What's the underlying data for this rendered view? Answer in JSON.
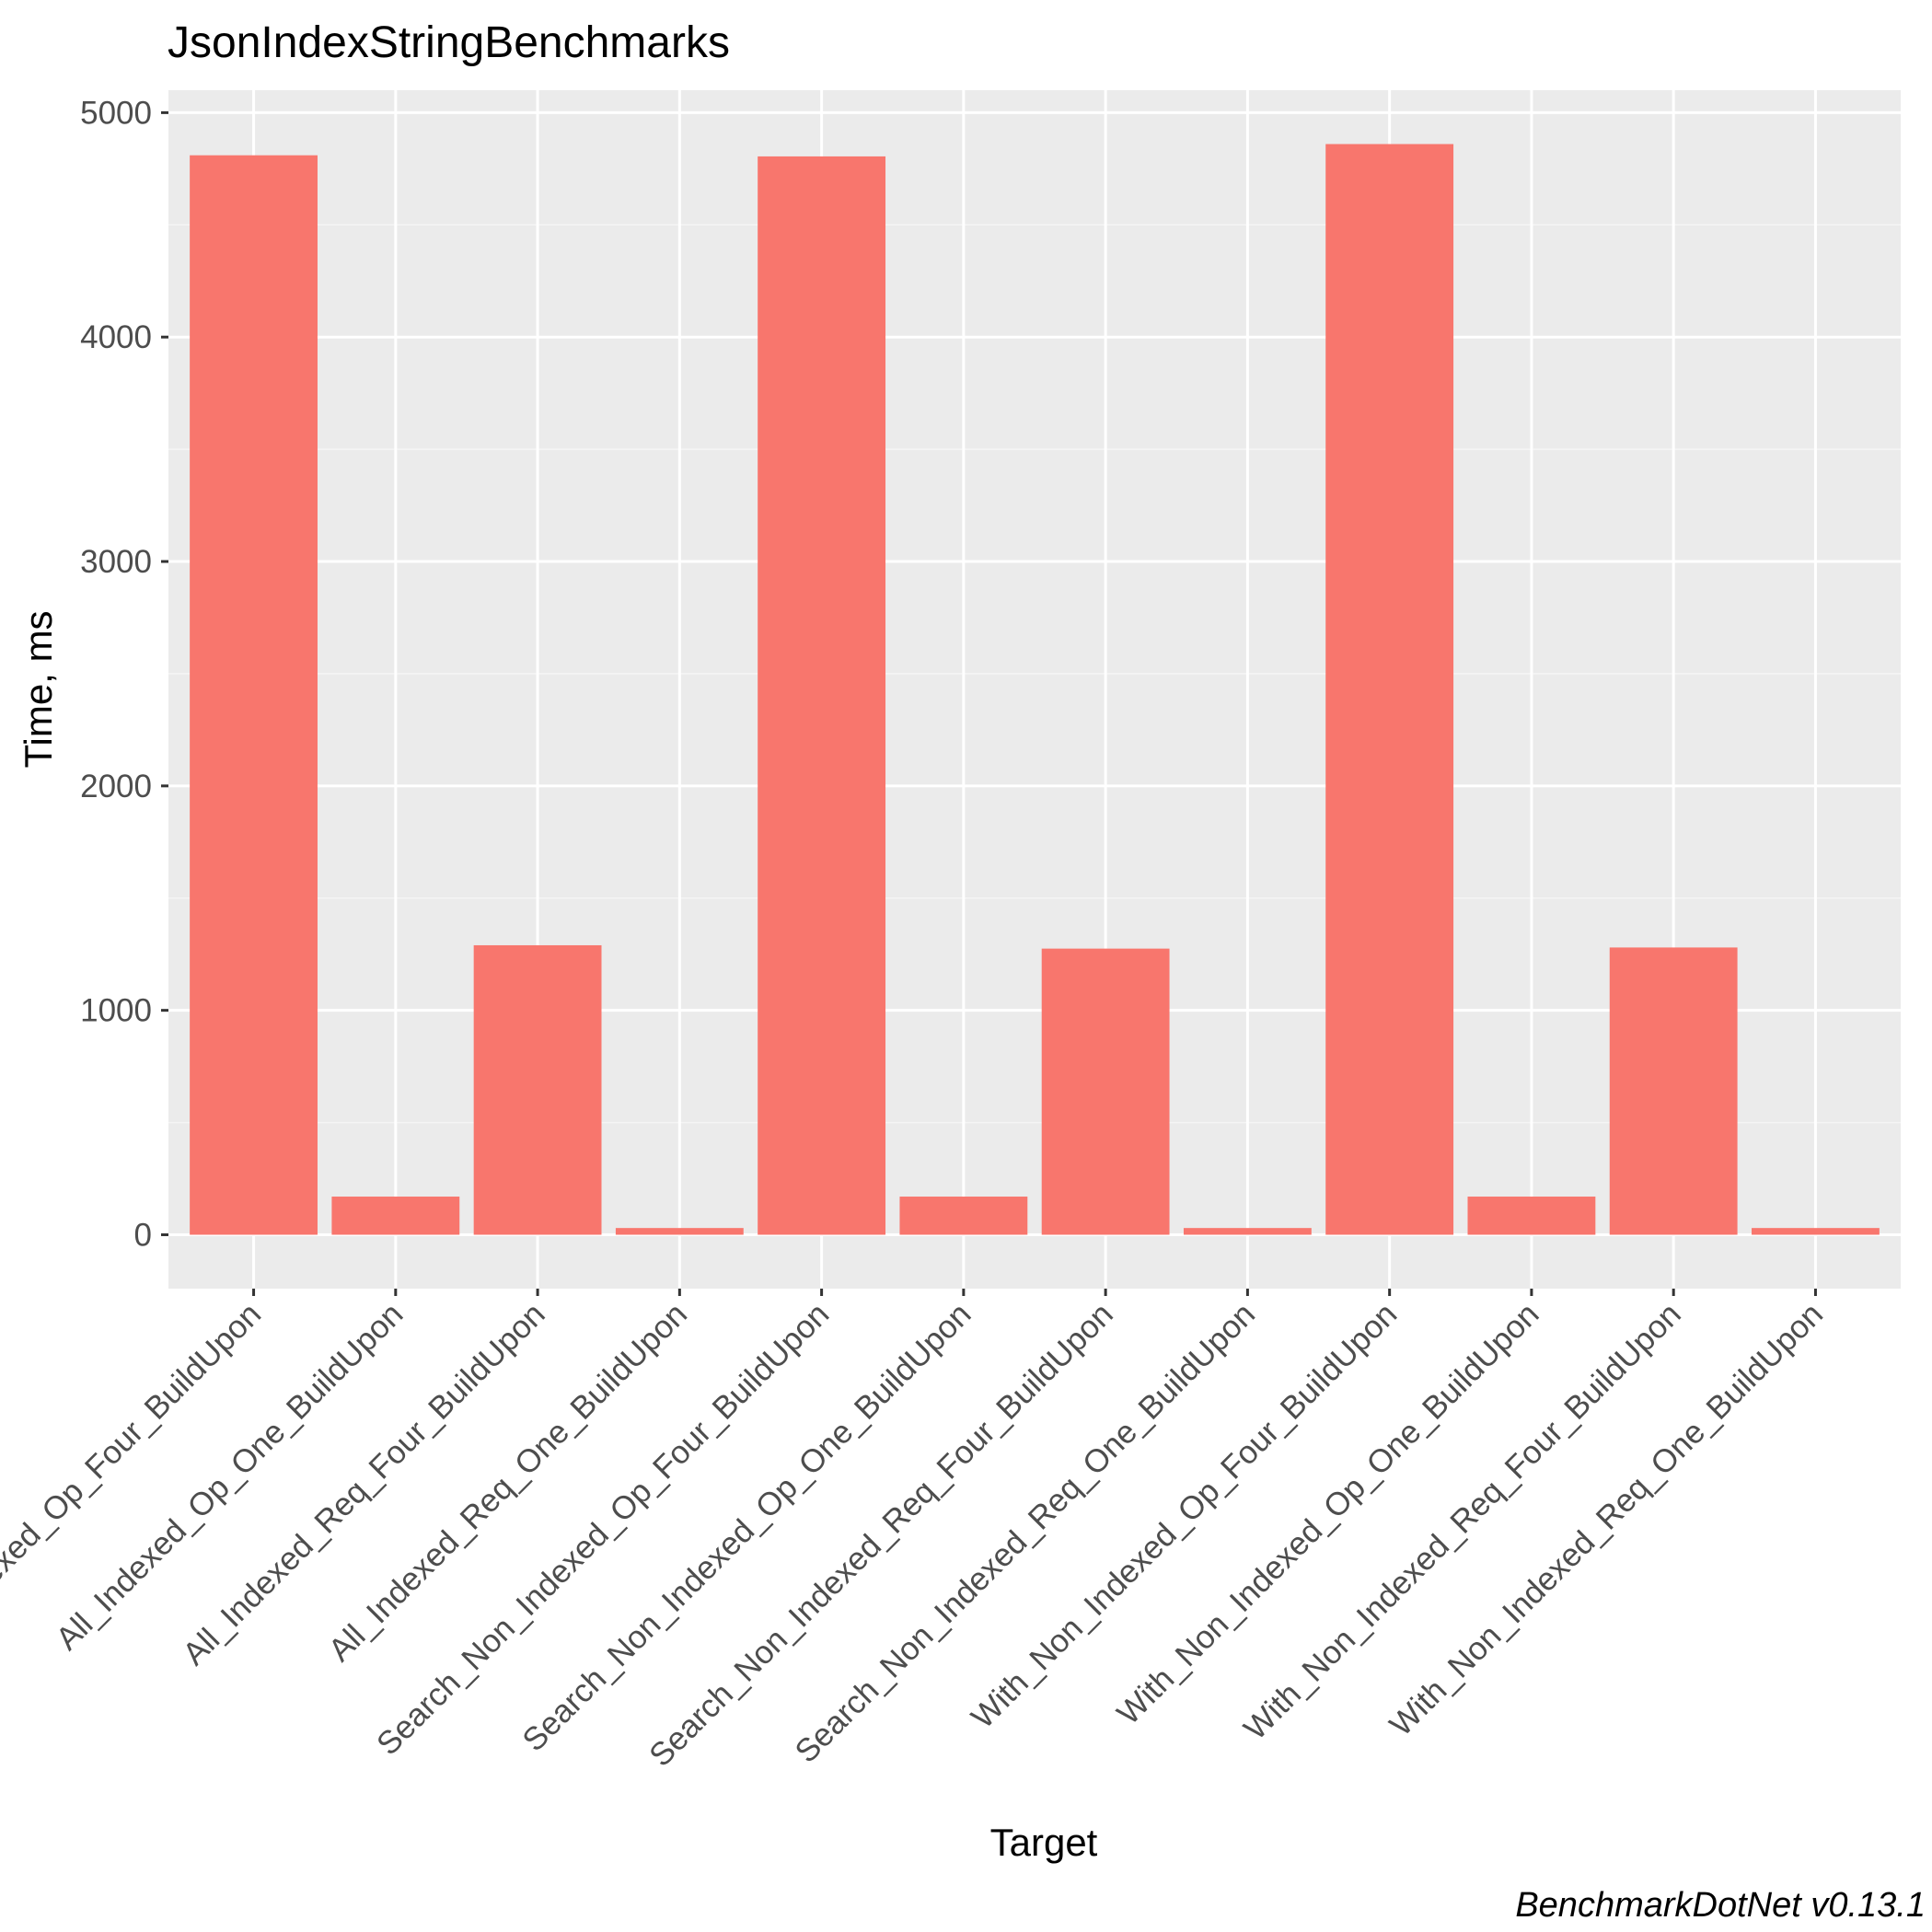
{
  "colors": {
    "panel_background": "#ebebeb",
    "grid_major": "#ffffff",
    "grid_minor": "#f5f5f5",
    "bar_fill": "#f8766d",
    "tick": "#333333",
    "tick_label": "#4d4d4d"
  },
  "chart_data": {
    "type": "bar",
    "title": "JsonIndexStringBenchmarks",
    "xlabel": "Target",
    "ylabel": "Time, ms",
    "caption": "BenchmarkDotNet v0.13.1",
    "categories": [
      "All_Indexed_Op_Four_BuildUpon",
      "All_Indexed_Op_One_BuildUpon",
      "All_Indexed_Req_Four_BuildUpon",
      "All_Indexed_Req_One_BuildUpon",
      "Search_Non_Indexed_Op_Four_BuildUpon",
      "Search_Non_Indexed_Op_One_BuildUpon",
      "Search_Non_Indexed_Req_Four_BuildUpon",
      "Search_Non_Indexed_Req_One_BuildUpon",
      "With_Non_Indexed_Op_Four_BuildUpon",
      "With_Non_Indexed_Op_One_BuildUpon",
      "With_Non_Indexed_Req_Four_BuildUpon",
      "With_Non_Indexed_Req_One_BuildUpon"
    ],
    "values": [
      4810,
      170,
      1290,
      30,
      4805,
      170,
      1275,
      30,
      4860,
      170,
      1280,
      30
    ],
    "ylim": [
      -240,
      5100
    ],
    "yticks": [
      0,
      1000,
      2000,
      3000,
      4000,
      5000
    ],
    "grid": true,
    "legend": "none"
  }
}
